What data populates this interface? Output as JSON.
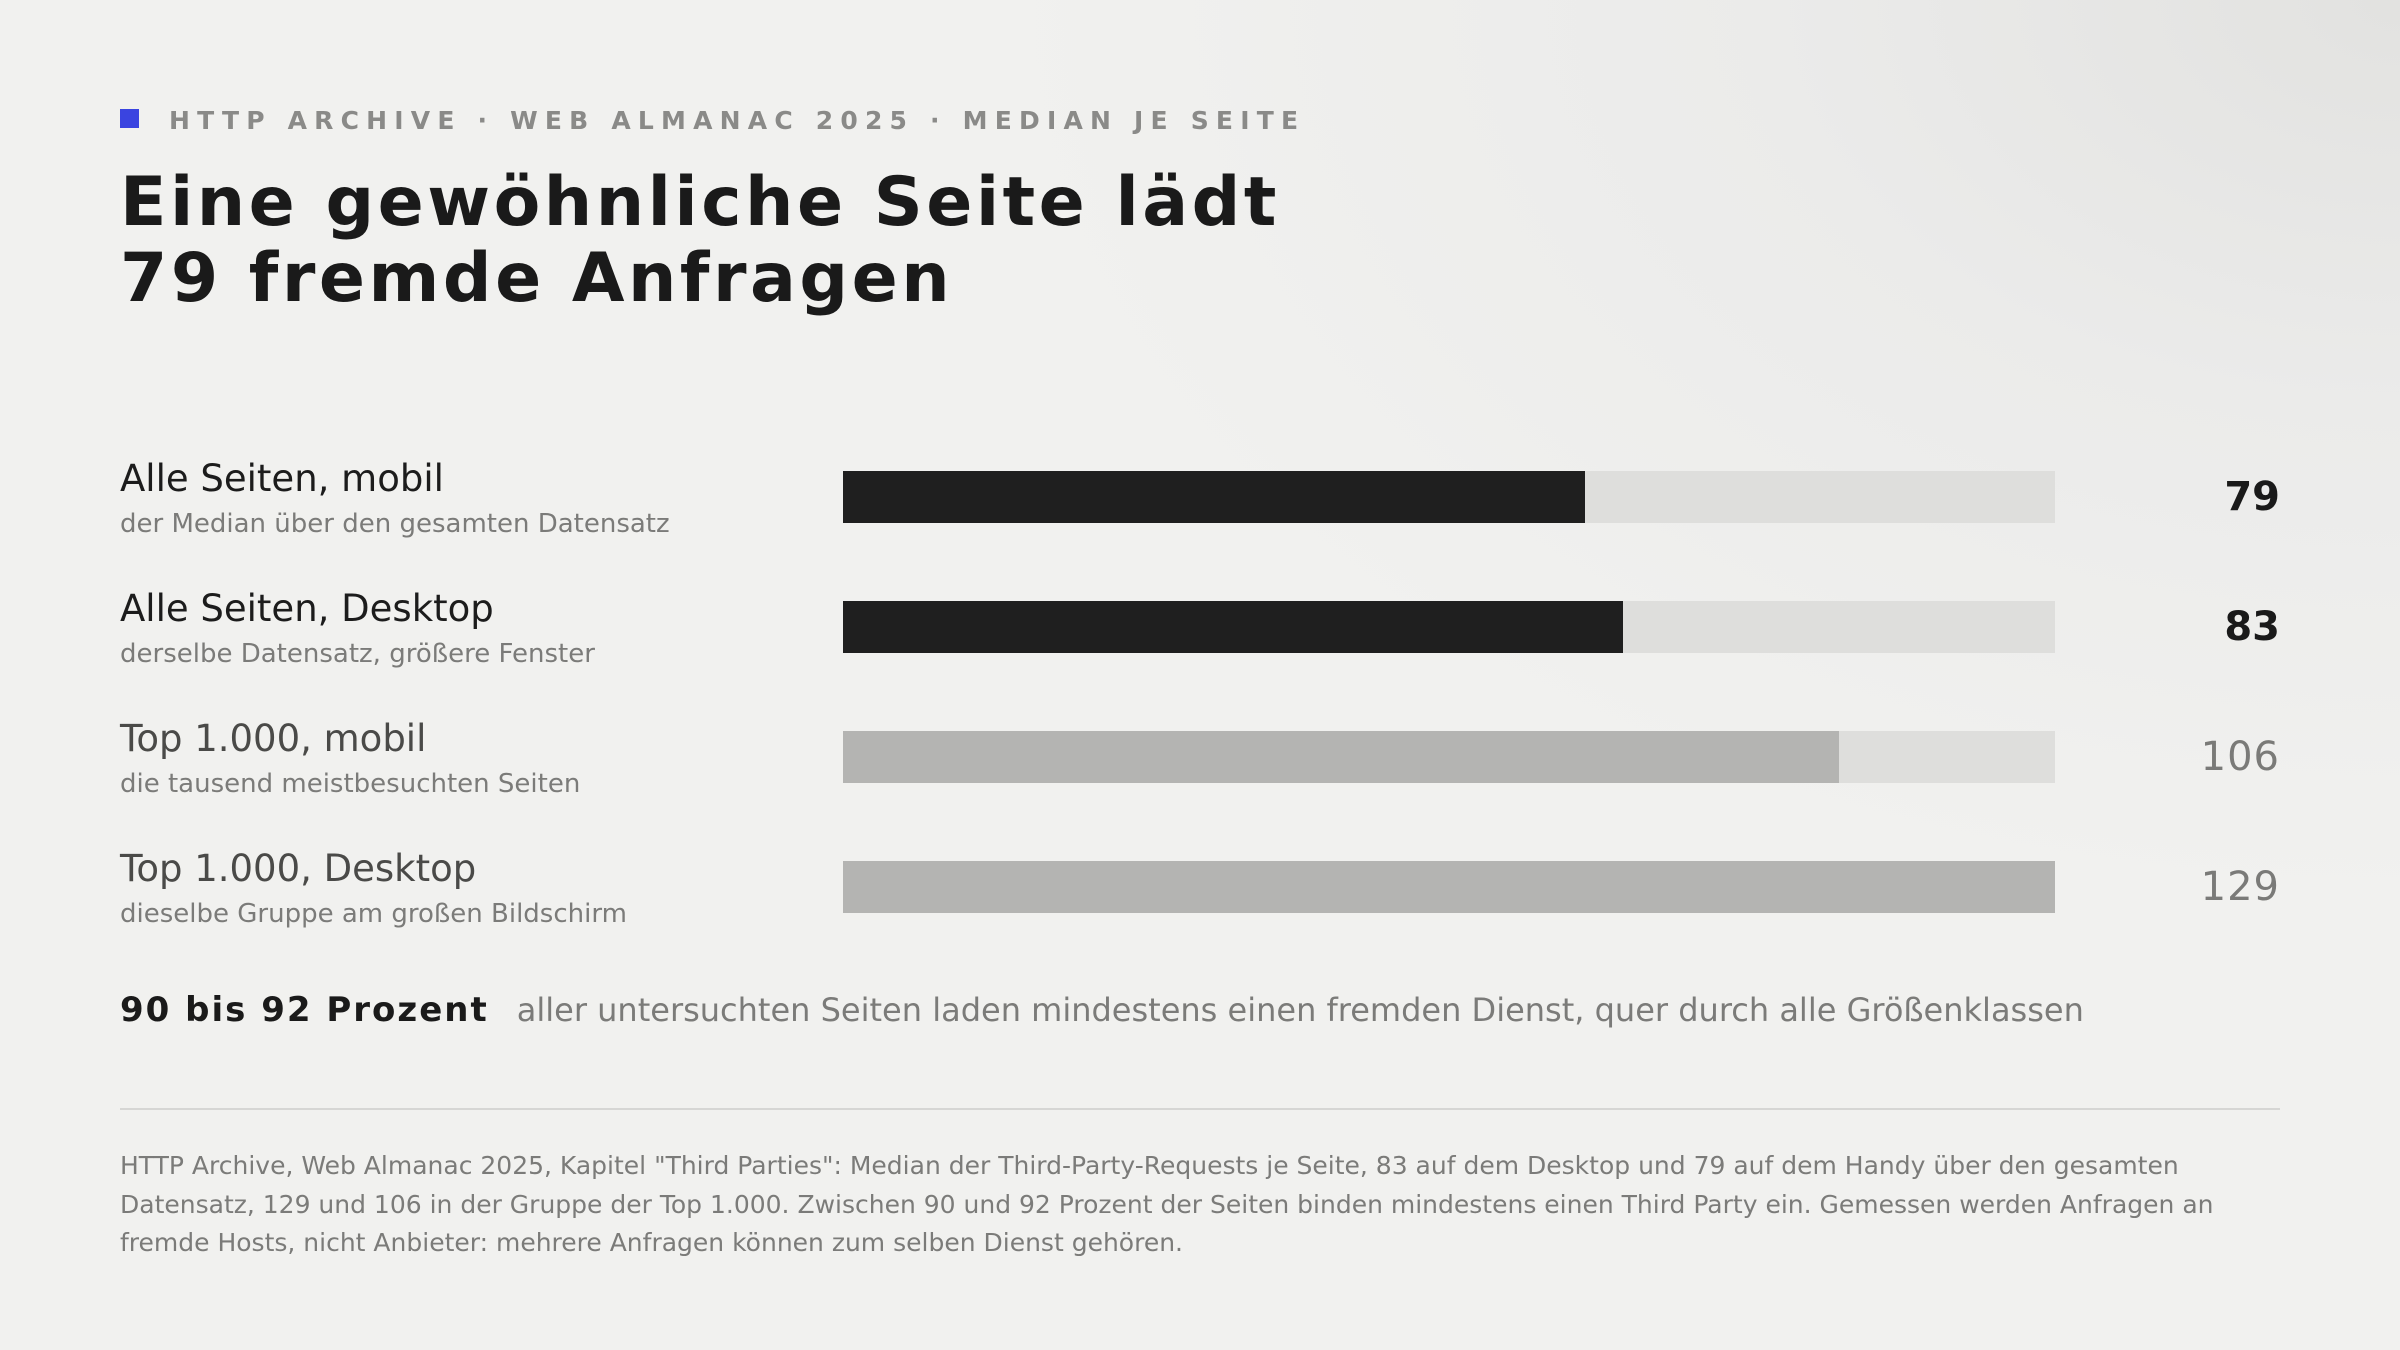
{
  "header": {
    "kicker": "HTTP ARCHIVE · WEB ALMANAC 2025 · MEDIAN JE SEITE",
    "accent_color": "#3a44e0",
    "title_line1": "Eine gewöhnliche Seite lädt",
    "title_line2": "79 fremde Anfragen"
  },
  "chart_data": {
    "type": "bar",
    "orientation": "horizontal",
    "xlim": [
      0,
      129
    ],
    "categories": [
      "Alle Seiten, mobil",
      "Alle Seiten, Desktop",
      "Top 1.000, mobil",
      "Top 1.000, Desktop"
    ],
    "subtitles": [
      "der Median über den gesamten Datensatz",
      "derselbe Datensatz, größere Fenster",
      "die tausend meistbesuchten Seiten",
      "dieselbe Gruppe am großen Bildschirm"
    ],
    "values": [
      79,
      83,
      106,
      129
    ],
    "value_labels": [
      "79",
      "83",
      "106",
      "129"
    ],
    "emphasis": [
      true,
      true,
      false,
      false
    ],
    "colors": {
      "emphasis_bar": "#1f1f1f",
      "muted_bar": "#b4b4b2",
      "track": "#dededc"
    },
    "grid": false,
    "legend": "none"
  },
  "stat": {
    "strong": "90 bis 92 Prozent",
    "text": "aller untersuchten Seiten laden mindestens einen fremden Dienst, quer durch alle Größenklassen"
  },
  "source": {
    "text": "HTTP Archive, Web Almanac 2025, Kapitel \"Third Parties\": Median der Third-Party-Requests je Seite, 83 auf dem Desktop und 79 auf dem Handy über den gesamten Datensatz, 129 und 106 in der Gruppe der Top 1.000. Zwischen 90 und 92 Prozent der Seiten binden mindestens einen Third Party ein. Gemessen werden Anfragen an fremde Hosts, nicht Anbieter: mehrere Anfragen können zum selben Dienst gehören."
  }
}
